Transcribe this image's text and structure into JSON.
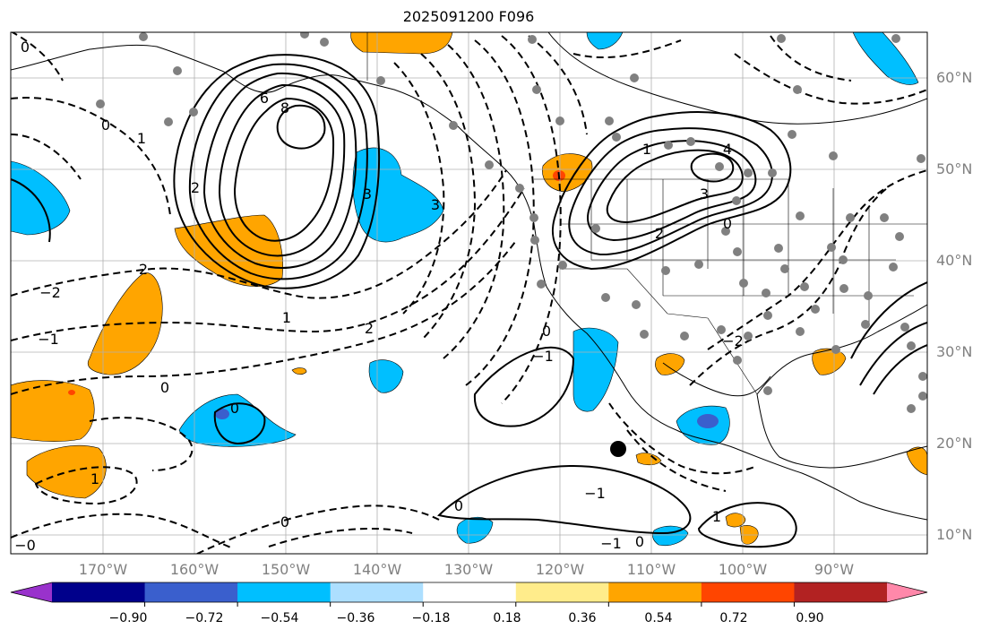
{
  "title": "2025091200 F096",
  "lat_labels": [
    "60°N",
    "50°N",
    "40°N",
    "30°N",
    "20°N",
    "10°N"
  ],
  "lon_labels": [
    "170°W",
    "160°W",
    "150°W",
    "140°W",
    "130°W",
    "120°W",
    "110°W",
    "100°W",
    "90°W"
  ],
  "colorbar": {
    "colors": [
      "#9932CC",
      "#00008B",
      "#3A5FCD",
      "#00BFFF",
      "#ADDFFF",
      "#FFFFFF",
      "#FFEC8B",
      "#FFA500",
      "#FF4500",
      "#B22222",
      "#FF88AA"
    ],
    "tick_labels": [
      "−0.90",
      "−0.72",
      "−0.54",
      "−0.36",
      "−0.18",
      "0.18",
      "0.36",
      "0.54",
      "0.72",
      "0.90"
    ]
  },
  "contour_labels": [
    "0",
    "1",
    "2",
    "3",
    "4",
    "8",
    "6",
    "0",
    "1",
    "2",
    "−2",
    "−1",
    "0",
    "2",
    "3",
    "1",
    "0",
    "−1",
    "0",
    "−1",
    "0",
    "1",
    "−1",
    "0",
    "−0",
    "1",
    "0",
    "−2",
    "0",
    "2",
    "3"
  ],
  "marker": {
    "lon": -113.5,
    "lat": 19.5
  },
  "colors": {
    "positive_shading": "#FFA500",
    "negative_shading": "#00BFFF",
    "contour": "#000000",
    "station_dots": "#808080",
    "grid": "#b0b0b0"
  }
}
